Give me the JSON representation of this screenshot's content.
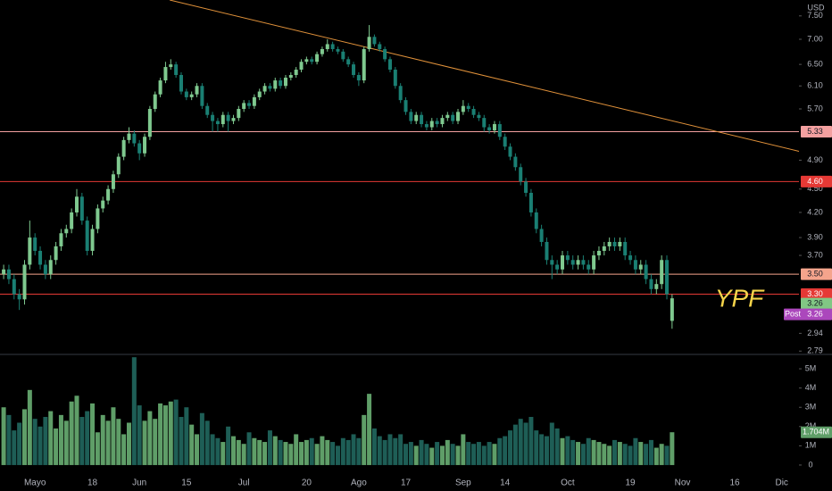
{
  "chart_data": {
    "type": "candlestick",
    "currency": "USD",
    "annotation": "YPF",
    "scale": "log",
    "ylim": [
      2.77,
      7.86
    ],
    "yticks": [
      {
        "value": 7.5,
        "label": "7.50"
      },
      {
        "value": 7,
        "label": "7.00"
      },
      {
        "value": 6.5,
        "label": "6.50"
      },
      {
        "value": 6.1,
        "label": "6.10"
      },
      {
        "value": 5.7,
        "label": "5.70"
      },
      {
        "value": 4.9,
        "label": "4.90"
      },
      {
        "value": 4.5,
        "label": "4.50"
      },
      {
        "value": 4.2,
        "label": "4.20"
      },
      {
        "value": 3.9,
        "label": "3.90"
      },
      {
        "value": 3.7,
        "label": "3.70"
      },
      2.94,
      2.79
    ],
    "xlim": [
      -0.7,
      152.3
    ],
    "xticks": [
      {
        "value": 6,
        "label": "Mayo"
      },
      {
        "value": 17,
        "label": "18"
      },
      {
        "value": 26,
        "label": "Jun"
      },
      {
        "value": 35,
        "label": "15"
      },
      {
        "value": 46,
        "label": "Jul"
      },
      {
        "value": 58,
        "label": "20"
      },
      {
        "value": 68,
        "label": "Ago"
      },
      {
        "value": 77,
        "label": "17"
      },
      {
        "value": 88,
        "label": "Sep"
      },
      {
        "value": 96,
        "label": "14"
      },
      {
        "value": 108,
        "label": "Oct"
      },
      {
        "value": 120,
        "label": "19"
      },
      {
        "value": 130,
        "label": "Nov"
      },
      {
        "value": 140,
        "label": "16"
      },
      {
        "value": 149,
        "label": "Dic"
      }
    ],
    "up_color": "#7fc98f",
    "down_color": "#1a7f73",
    "volume_up_color": "#5f9e68",
    "volume_down_color": "#1e5e56",
    "open": [
      3.5,
      3.55,
      3.45,
      3.3,
      3.25,
      3.6,
      3.9,
      3.75,
      3.6,
      3.5,
      3.65,
      3.8,
      3.95,
      4,
      4.2,
      4.4,
      4.1,
      3.75,
      4,
      4.25,
      4.35,
      4.5,
      4.7,
      4.95,
      5.2,
      5.3,
      5.15,
      5,
      5.25,
      5.7,
      5.95,
      6.2,
      6.45,
      6.5,
      6.3,
      6,
      5.9,
      5.95,
      6.1,
      5.75,
      5.6,
      5.5,
      5.45,
      5.6,
      5.5,
      5.55,
      5.7,
      5.8,
      5.75,
      5.9,
      6,
      6.1,
      6.05,
      6.2,
      6.1,
      6.25,
      6.3,
      6.4,
      6.55,
      6.6,
      6.55,
      6.7,
      6.8,
      6.9,
      6.8,
      6.75,
      6.6,
      6.5,
      6.3,
      6.2,
      6.8,
      7.05,
      6.9,
      6.8,
      6.6,
      6.4,
      6.1,
      5.85,
      5.65,
      5.5,
      5.6,
      5.45,
      5.4,
      5.5,
      5.45,
      5.55,
      5.6,
      5.5,
      5.65,
      5.75,
      5.7,
      5.6,
      5.55,
      5.4,
      5.35,
      5.45,
      5.25,
      5.1,
      4.95,
      4.8,
      4.6,
      4.45,
      4.2,
      4,
      3.85,
      3.65,
      3.6,
      3.55,
      3.7,
      3.65,
      3.6,
      3.65,
      3.6,
      3.55,
      3.7,
      3.75,
      3.8,
      3.85,
      3.8,
      3.85,
      3.7,
      3.65,
      3.55,
      3.6,
      3.45,
      3.35,
      3.4,
      3.65,
      3.05
    ],
    "high": [
      3.6,
      3.6,
      3.5,
      3.35,
      3.65,
      4.1,
      3.95,
      3.8,
      3.65,
      3.7,
      3.85,
      4,
      4.05,
      4.25,
      4.5,
      4.45,
      4.15,
      4.05,
      4.3,
      4.4,
      4.55,
      4.75,
      5,
      5.25,
      5.4,
      5.35,
      5.2,
      5.3,
      5.75,
      6,
      6.25,
      6.55,
      6.6,
      6.55,
      6.35,
      6.05,
      6,
      6.15,
      6.15,
      5.8,
      5.65,
      5.55,
      5.65,
      5.65,
      5.6,
      5.75,
      5.85,
      5.85,
      5.95,
      6.05,
      6.15,
      6.15,
      6.25,
      6.25,
      6.3,
      6.35,
      6.45,
      6.6,
      6.65,
      6.65,
      6.75,
      6.85,
      7,
      6.95,
      6.85,
      6.8,
      6.65,
      6.55,
      6.35,
      6.85,
      7.3,
      7.1,
      6.95,
      6.85,
      6.65,
      6.45,
      6.15,
      5.9,
      5.7,
      5.65,
      5.65,
      5.5,
      5.55,
      5.55,
      5.6,
      5.65,
      5.65,
      5.7,
      5.85,
      5.8,
      5.75,
      5.65,
      5.6,
      5.45,
      5.5,
      5.5,
      5.3,
      5.15,
      5,
      4.85,
      4.65,
      4.5,
      4.25,
      4.05,
      3.9,
      3.7,
      3.65,
      3.75,
      3.75,
      3.7,
      3.7,
      3.7,
      3.65,
      3.75,
      3.8,
      3.85,
      3.9,
      3.9,
      3.9,
      3.9,
      3.75,
      3.7,
      3.65,
      3.65,
      3.5,
      3.45,
      3.7,
      3.7,
      3.3
    ],
    "low": [
      3.45,
      3.4,
      3.25,
      3.15,
      3.2,
      3.55,
      3.7,
      3.55,
      3.45,
      3.45,
      3.6,
      3.75,
      3.9,
      3.95,
      4.15,
      4.05,
      3.7,
      3.7,
      3.95,
      4.2,
      4.3,
      4.45,
      4.65,
      4.9,
      5.15,
      5.1,
      4.9,
      4.95,
      5.2,
      5.65,
      5.9,
      6.15,
      6.4,
      6.25,
      5.95,
      5.85,
      5.85,
      5.9,
      5.7,
      5.55,
      5.33,
      5.33,
      5.4,
      5.33,
      5.45,
      5.5,
      5.65,
      5.7,
      5.7,
      5.85,
      5.95,
      6,
      6,
      6.05,
      6.05,
      6.2,
      6.25,
      6.35,
      6.5,
      6.5,
      6.5,
      6.65,
      6.75,
      6.75,
      6.7,
      6.55,
      6.45,
      6.25,
      6.1,
      6.15,
      6.75,
      6.85,
      6.75,
      6.55,
      6.35,
      6.05,
      5.8,
      5.6,
      5.45,
      5.45,
      5.4,
      5.35,
      5.35,
      5.4,
      5.4,
      5.5,
      5.45,
      5.45,
      5.6,
      5.65,
      5.55,
      5.5,
      5.33,
      5.3,
      5.3,
      5.2,
      5.05,
      4.9,
      4.75,
      4.55,
      4.4,
      4.15,
      3.95,
      3.8,
      3.6,
      3.45,
      3.5,
      3.5,
      3.6,
      3.55,
      3.55,
      3.55,
      3.5,
      3.5,
      3.65,
      3.7,
      3.75,
      3.75,
      3.75,
      3.65,
      3.6,
      3.5,
      3.5,
      3.4,
      3.3,
      3.3,
      3.35,
      3.25,
      2.98
    ],
    "close": [
      3.55,
      3.45,
      3.3,
      3.25,
      3.6,
      3.9,
      3.75,
      3.6,
      3.5,
      3.65,
      3.8,
      3.95,
      4,
      4.2,
      4.4,
      4.1,
      3.75,
      4,
      4.25,
      4.35,
      4.5,
      4.7,
      4.95,
      5.2,
      5.3,
      5.15,
      5,
      5.25,
      5.7,
      5.95,
      6.2,
      6.45,
      6.5,
      6.3,
      6,
      5.9,
      5.95,
      6.1,
      5.75,
      5.6,
      5.5,
      5.45,
      5.6,
      5.5,
      5.55,
      5.7,
      5.8,
      5.75,
      5.9,
      6,
      6.1,
      6.05,
      6.2,
      6.1,
      6.25,
      6.3,
      6.4,
      6.55,
      6.6,
      6.55,
      6.7,
      6.8,
      6.9,
      6.8,
      6.75,
      6.6,
      6.5,
      6.3,
      6.2,
      6.8,
      7.05,
      6.9,
      6.8,
      6.6,
      6.4,
      6.1,
      5.85,
      5.65,
      5.5,
      5.6,
      5.45,
      5.4,
      5.5,
      5.45,
      5.55,
      5.6,
      5.5,
      5.65,
      5.75,
      5.7,
      5.6,
      5.55,
      5.4,
      5.35,
      5.45,
      5.25,
      5.1,
      4.95,
      4.8,
      4.6,
      4.45,
      4.2,
      4,
      3.85,
      3.65,
      3.6,
      3.55,
      3.7,
      3.65,
      3.6,
      3.65,
      3.6,
      3.55,
      3.7,
      3.75,
      3.8,
      3.85,
      3.8,
      3.85,
      3.7,
      3.65,
      3.55,
      3.6,
      3.45,
      3.35,
      3.4,
      3.65,
      3.3,
      3.26
    ],
    "volume": [
      3.0,
      2.6,
      1.8,
      2.2,
      2.9,
      3.9,
      2.4,
      2.0,
      2.5,
      2.8,
      1.9,
      2.6,
      2.3,
      3.3,
      3.6,
      2.5,
      2.8,
      3.2,
      1.7,
      2.6,
      2.3,
      3.0,
      2.4,
      1.6,
      2.2,
      5.6,
      3.1,
      2.3,
      2.8,
      2.4,
      3.2,
      3.1,
      3.3,
      3.4,
      2.5,
      3.0,
      2.1,
      1.6,
      2.7,
      2.3,
      1.6,
      1.4,
      1.2,
      2.0,
      1.5,
      1.3,
      1.1,
      1.7,
      1.4,
      1.3,
      1.2,
      1.8,
      1.5,
      1.3,
      1.2,
      1.1,
      1.6,
      1.2,
      1.3,
      1.4,
      1.1,
      1.5,
      1.3,
      1.2,
      1.0,
      1.4,
      1.3,
      1.6,
      1.4,
      2.6,
      3.7,
      1.9,
      1.5,
      1.3,
      1.6,
      1.4,
      1.6,
      1.1,
      1.2,
      1.0,
      1.3,
      1.1,
      0.9,
      1.2,
      1.0,
      1.3,
      1.1,
      1.0,
      1.6,
      1.2,
      1.1,
      1.2,
      1.0,
      1.2,
      1.1,
      1.4,
      1.5,
      1.8,
      2.1,
      2.4,
      2.2,
      2.5,
      1.8,
      1.6,
      1.5,
      2.2,
      1.9,
      1.4,
      1.5,
      1.3,
      1.2,
      1.1,
      1.4,
      1.3,
      1.2,
      1.1,
      1.0,
      1.3,
      1.2,
      1.1,
      1.0,
      1.4,
      1.2,
      1.1,
      1.3,
      0.9,
      1.1,
      1.0,
      1.704
    ],
    "vlim": [
      -0.42,
      5.7
    ],
    "vticks": [
      {
        "value": 5,
        "label": "5M"
      },
      {
        "value": 4,
        "label": "4M"
      },
      {
        "value": 3,
        "label": "3M"
      },
      {
        "value": 2,
        "label": "2M"
      },
      {
        "value": 1,
        "label": "1M"
      },
      0
    ],
    "last_volume": {
      "value": 1.704,
      "label": "1.704M"
    },
    "levels": [
      {
        "value": 5.33,
        "label": "5.33",
        "color": "#f4a0a0",
        "text_color": "#131722"
      },
      {
        "value": 4.6,
        "label": "4.60",
        "color": "#e53935",
        "text_color": "#ffffff"
      },
      {
        "value": 3.5,
        "label": "3.50",
        "color": "#f5a48c",
        "text_color": "#131722"
      },
      {
        "value": 3.3,
        "label": "3.30",
        "color": "#e53935",
        "text_color": "#ffffff"
      }
    ],
    "last_price": {
      "value": 3.26,
      "label": "3.26",
      "color": "#81c784"
    },
    "post_price": {
      "prefix": "Post",
      "value": 3.26,
      "label": "3.26",
      "color": "#ab47bc"
    },
    "trendline": {
      "x": [
        31.8,
        152.3
      ],
      "y": [
        7.86,
        5.03
      ],
      "color": "#e0913a"
    }
  }
}
